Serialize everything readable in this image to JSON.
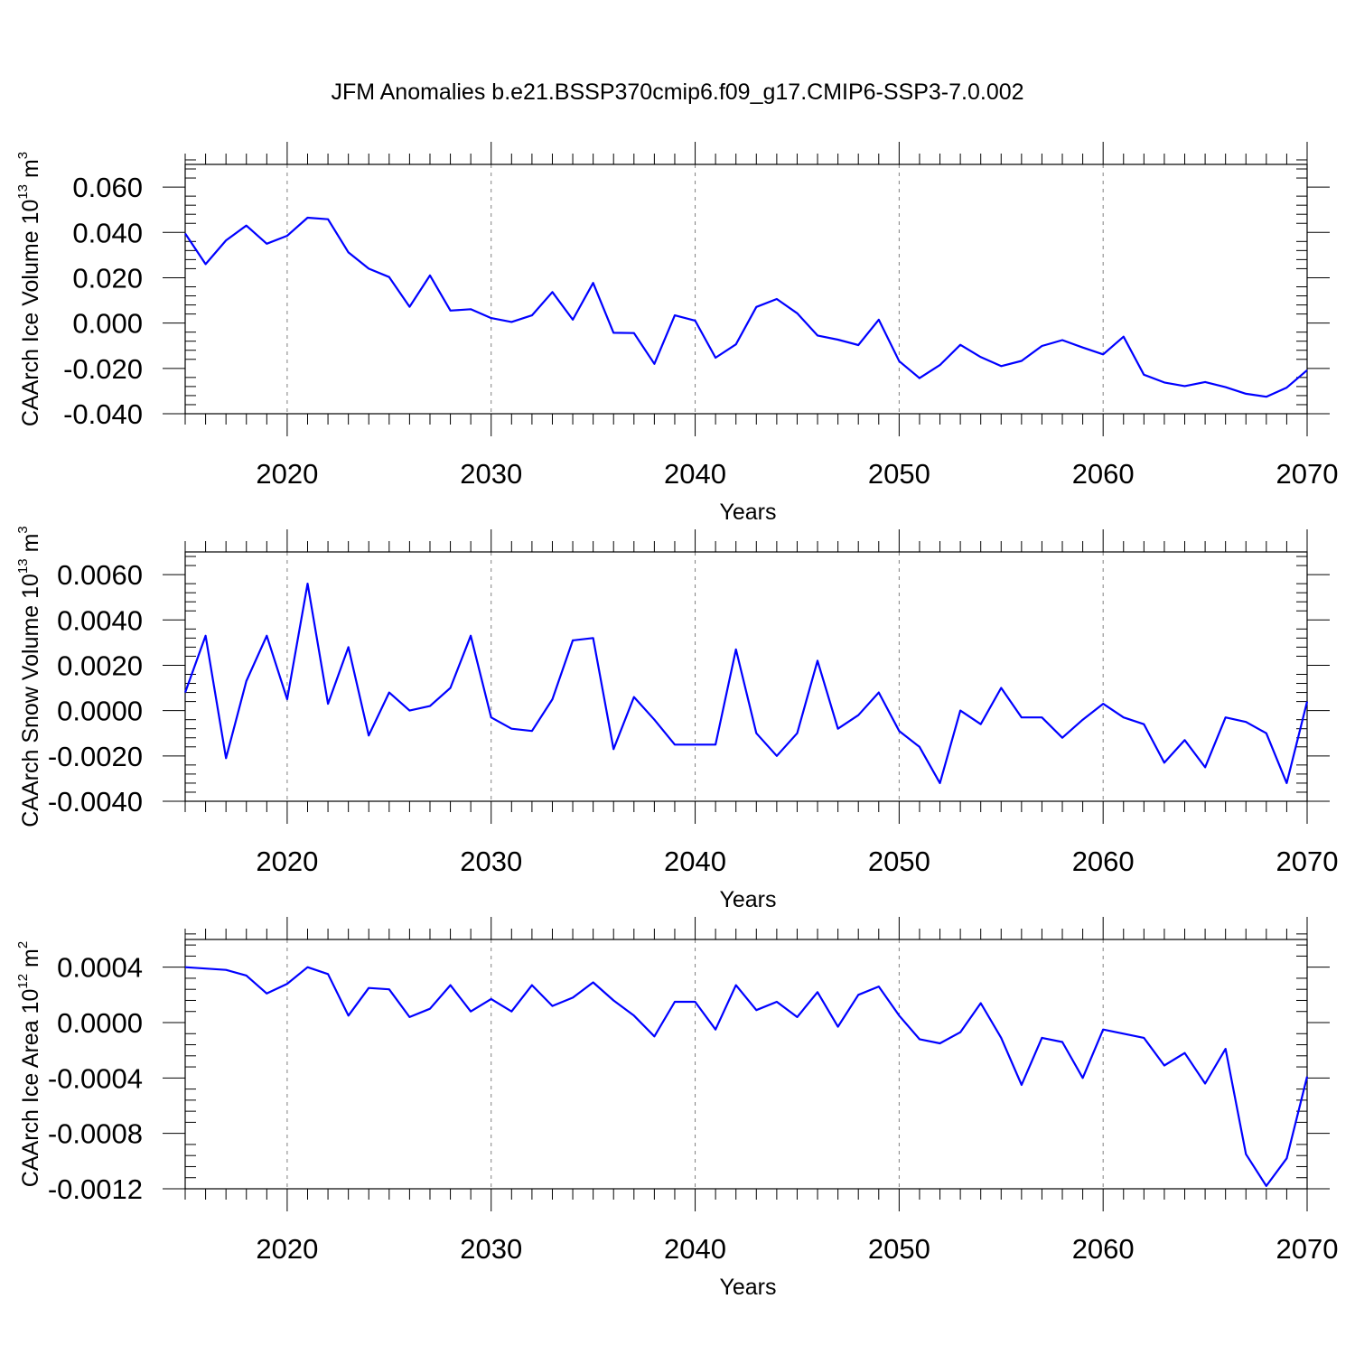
{
  "figure": {
    "title": "JFM Anomalies b.e21.BSSP370cmip6.f09_g17.CMIP6-SSP3-7.0.002"
  },
  "colors": {
    "line": "#0000ff",
    "axes": "#000000",
    "grid": "#7f7f7f"
  },
  "chart_data": [
    {
      "type": "line",
      "ylabel": "CAArch Ice Volume 10",
      "ylabel_exponent": "13",
      "ylabel_unit": "m",
      "ylabel_unit_exponent": "3",
      "xlabel": "Years",
      "xlim": [
        2015,
        2070
      ],
      "ylim": [
        -0.04,
        0.07
      ],
      "yticks": [
        -0.04,
        -0.02,
        0.0,
        0.02,
        0.04,
        0.06
      ],
      "ytick_labels": [
        "-0.040",
        "-0.020",
        "0.000",
        "0.020",
        "0.040",
        "0.060"
      ],
      "xticks": [
        2020,
        2030,
        2040,
        2050,
        2060,
        2070
      ],
      "xtick_labels": [
        "2020",
        "2030",
        "2040",
        "2050",
        "2060",
        "2070"
      ],
      "grid": "vertical dashed at major x ticks",
      "x": [
        2015,
        2016,
        2017,
        2018,
        2019,
        2020,
        2021,
        2022,
        2023,
        2024,
        2025,
        2026,
        2027,
        2028,
        2029,
        2030,
        2031,
        2032,
        2033,
        2034,
        2035,
        2036,
        2037,
        2038,
        2039,
        2040,
        2041,
        2042,
        2043,
        2044,
        2045,
        2046,
        2047,
        2048,
        2049,
        2050,
        2051,
        2052,
        2053,
        2054,
        2055,
        2056,
        2057,
        2058,
        2059,
        2060,
        2061,
        2062,
        2063,
        2064,
        2065,
        2066,
        2067,
        2068,
        2069,
        2070
      ],
      "series": [
        {
          "values": [
            0.0395,
            0.026,
            0.0365,
            0.043,
            0.035,
            0.0385,
            0.0465,
            0.0458,
            0.0312,
            0.024,
            0.0203,
            0.0072,
            0.021,
            0.0055,
            0.0061,
            0.0022,
            0.0005,
            0.0034,
            0.0137,
            0.0015,
            0.0177,
            -0.0043,
            -0.0044,
            -0.018,
            0.0034,
            0.0011,
            -0.0153,
            -0.0094,
            0.0071,
            0.0106,
            0.0043,
            -0.0055,
            -0.0073,
            -0.0097,
            0.0015,
            -0.0168,
            -0.0243,
            -0.0185,
            -0.0096,
            -0.015,
            -0.019,
            -0.0167,
            -0.0101,
            -0.0075,
            -0.0108,
            -0.0138,
            -0.006,
            -0.0228,
            -0.0262,
            -0.0278,
            -0.026,
            -0.0283,
            -0.0312,
            -0.0325,
            -0.0285,
            -0.0208
          ]
        }
      ]
    },
    {
      "type": "line",
      "ylabel": "CAArch Snow Volume 10",
      "ylabel_exponent": "13",
      "ylabel_unit": "m",
      "ylabel_unit_exponent": "3",
      "xlabel": "Years",
      "xlim": [
        2015,
        2070
      ],
      "ylim": [
        -0.004,
        0.007
      ],
      "yticks": [
        -0.004,
        -0.002,
        0.0,
        0.002,
        0.004,
        0.006
      ],
      "ytick_labels": [
        "-0.0040",
        "-0.0020",
        "0.0000",
        "0.0020",
        "0.0040",
        "0.0060"
      ],
      "xticks": [
        2020,
        2030,
        2040,
        2050,
        2060,
        2070
      ],
      "xtick_labels": [
        "2020",
        "2030",
        "2040",
        "2050",
        "2060",
        "2070"
      ],
      "grid": "vertical dashed at major x ticks",
      "x": [
        2015,
        2016,
        2017,
        2018,
        2019,
        2020,
        2021,
        2022,
        2023,
        2024,
        2025,
        2026,
        2027,
        2028,
        2029,
        2030,
        2031,
        2032,
        2033,
        2034,
        2035,
        2036,
        2037,
        2038,
        2039,
        2040,
        2041,
        2042,
        2043,
        2044,
        2045,
        2046,
        2047,
        2048,
        2049,
        2050,
        2051,
        2052,
        2053,
        2054,
        2055,
        2056,
        2057,
        2058,
        2059,
        2060,
        2061,
        2062,
        2063,
        2064,
        2065,
        2066,
        2067,
        2068,
        2069,
        2070
      ],
      "series": [
        {
          "values": [
            0.0008,
            0.0033,
            -0.0021,
            0.0013,
            0.0033,
            0.0005,
            0.0056,
            0.0003,
            0.0028,
            -0.0011,
            0.0008,
            0.0,
            0.0002,
            0.001,
            0.0033,
            -0.0003,
            -0.0008,
            -0.0009,
            0.0005,
            0.0031,
            0.0032,
            -0.0017,
            0.0006,
            -0.0004,
            -0.0015,
            -0.0015,
            -0.0015,
            0.0027,
            -0.001,
            -0.002,
            -0.001,
            0.0022,
            -0.0008,
            -0.0002,
            0.0008,
            -0.0009,
            -0.0016,
            -0.0032,
            0.0,
            -0.0006,
            0.001,
            -0.0003,
            -0.0003,
            -0.0012,
            -0.0004,
            0.0003,
            -0.0003,
            -0.0006,
            -0.0023,
            -0.0013,
            -0.0025,
            -0.0003,
            -0.0005,
            -0.001,
            -0.0032,
            0.0004
          ]
        }
      ]
    },
    {
      "type": "line",
      "ylabel": "CAArch Ice Area 10",
      "ylabel_exponent": "12",
      "ylabel_unit": "m",
      "ylabel_unit_exponent": "2",
      "xlabel": "Years",
      "xlim": [
        2015,
        2070
      ],
      "ylim": [
        -0.0012,
        0.0006
      ],
      "yticks": [
        -0.0012,
        -0.0008,
        -0.0004,
        0.0,
        0.0004
      ],
      "ytick_labels": [
        "-0.0012",
        "-0.0008",
        "-0.0004",
        "0.0000",
        "0.0004"
      ],
      "xticks": [
        2020,
        2030,
        2040,
        2050,
        2060,
        2070
      ],
      "xtick_labels": [
        "2020",
        "2030",
        "2040",
        "2050",
        "2060",
        "2070"
      ],
      "grid": "vertical dashed at major x ticks",
      "x": [
        2015,
        2016,
        2017,
        2018,
        2019,
        2020,
        2021,
        2022,
        2023,
        2024,
        2025,
        2026,
        2027,
        2028,
        2029,
        2030,
        2031,
        2032,
        2033,
        2034,
        2035,
        2036,
        2037,
        2038,
        2039,
        2040,
        2041,
        2042,
        2043,
        2044,
        2045,
        2046,
        2047,
        2048,
        2049,
        2050,
        2051,
        2052,
        2053,
        2054,
        2055,
        2056,
        2057,
        2058,
        2059,
        2060,
        2061,
        2062,
        2063,
        2064,
        2065,
        2066,
        2067,
        2068,
        2069,
        2070
      ],
      "series": [
        {
          "values": [
            0.0004,
            0.00039,
            0.00038,
            0.00034,
            0.00021,
            0.00028,
            0.0004,
            0.00035,
            5e-05,
            0.00025,
            0.00024,
            4e-05,
            0.0001,
            0.00027,
            8e-05,
            0.00017,
            8e-05,
            0.00027,
            0.00012,
            0.00018,
            0.00029,
            0.00016,
            5e-05,
            -0.0001,
            0.00015,
            0.00015,
            -5e-05,
            0.00027,
            9e-05,
            0.00015,
            4e-05,
            0.00022,
            -3e-05,
            0.0002,
            0.00026,
            5e-05,
            -0.00012,
            -0.00015,
            -7e-05,
            0.00014,
            -0.00011,
            -0.00045,
            -0.00011,
            -0.00014,
            -0.0004,
            -5e-05,
            -8e-05,
            -0.00011,
            -0.00031,
            -0.00022,
            -0.00044,
            -0.00019,
            -0.00095,
            -0.00118,
            -0.00098,
            -0.00039
          ]
        }
      ]
    }
  ]
}
